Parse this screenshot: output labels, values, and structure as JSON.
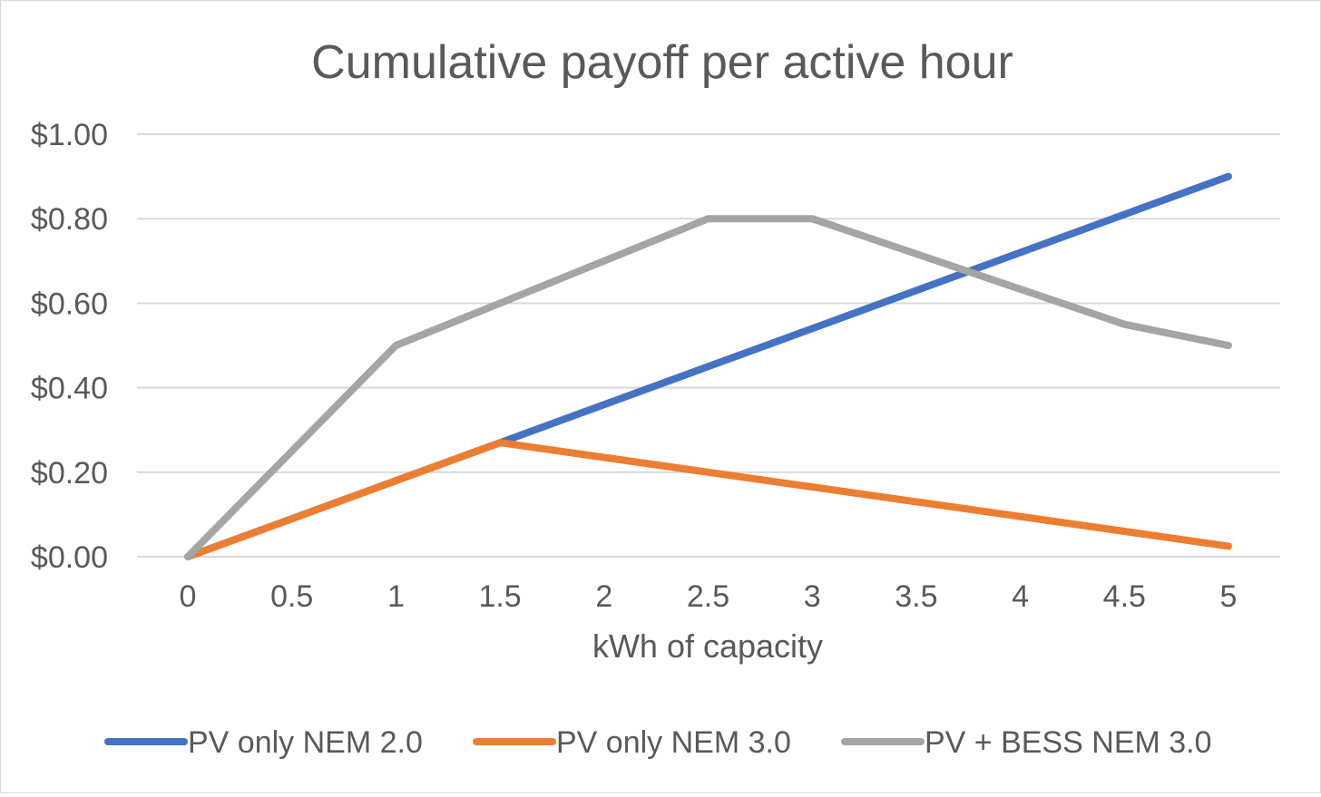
{
  "chart_data": {
    "type": "line",
    "title": "Cumulative payoff per active hour",
    "xlabel": "kWh of capacity",
    "ylabel": "",
    "categories": [
      "0",
      "0.5",
      "1",
      "1.5",
      "2",
      "2.5",
      "3",
      "3.5",
      "4",
      "4.5",
      "5"
    ],
    "x": [
      0,
      0.5,
      1,
      1.5,
      2,
      2.5,
      3,
      3.5,
      4,
      4.5,
      5
    ],
    "ylim": [
      0,
      1
    ],
    "yticks": [
      0,
      0.2,
      0.4,
      0.6,
      0.8,
      1.0
    ],
    "ytick_labels": [
      "$0.00",
      "$0.20",
      "$0.40",
      "$0.60",
      "$0.80",
      "$1.00"
    ],
    "grid": true,
    "legend_position": "bottom",
    "series": [
      {
        "name": "PV only NEM 2.0",
        "color": "#4472c4",
        "values": [
          0,
          0.09,
          0.18,
          0.27,
          0.36,
          0.45,
          0.54,
          0.63,
          0.72,
          0.81,
          0.9
        ]
      },
      {
        "name": "PV only NEM 3.0",
        "color": "#ed7d31",
        "values": [
          0,
          0.09,
          0.18,
          0.27,
          0.235,
          0.2,
          0.165,
          0.13,
          0.095,
          0.06,
          0.025
        ]
      },
      {
        "name": "PV + BESS NEM 3.0",
        "color": "#a5a5a5",
        "values": [
          0,
          0.25,
          0.5,
          0.6,
          0.7,
          0.8,
          0.8,
          0.7167,
          0.6333,
          0.55,
          0.5
        ]
      }
    ]
  }
}
